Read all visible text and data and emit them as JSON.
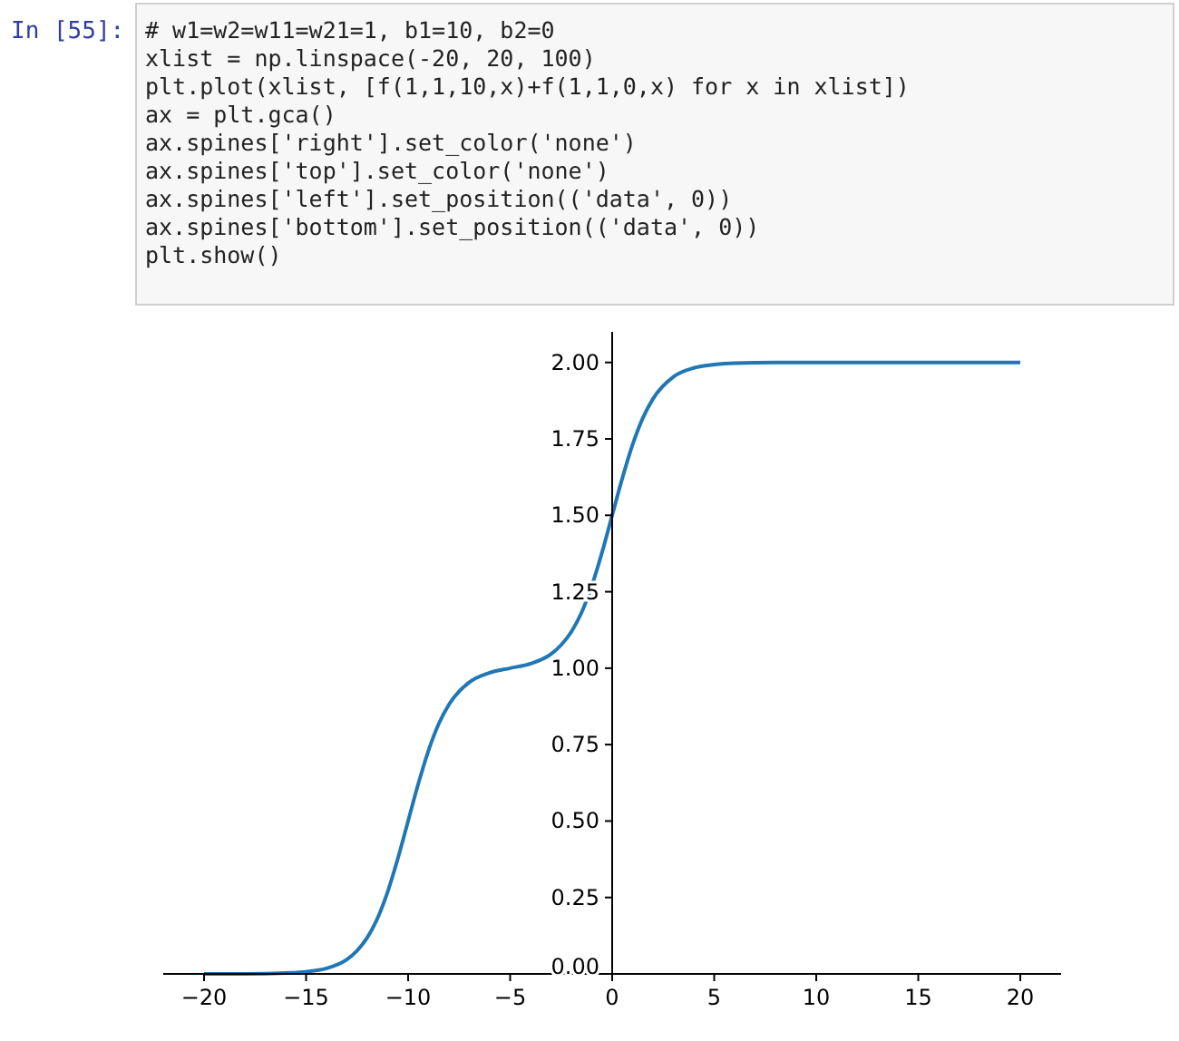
{
  "chart_data": {
    "type": "line",
    "x": [
      -20,
      -18,
      -16,
      -15,
      -14,
      -13,
      -12.5,
      -12,
      -11.5,
      -11,
      -10.5,
      -10,
      -9.5,
      -9,
      -8.5,
      -8,
      -7,
      -6,
      -5,
      -4,
      -3,
      -2.5,
      -2,
      -1.5,
      -1,
      -0.5,
      0,
      0.5,
      1,
      1.5,
      2,
      3,
      4,
      5,
      6,
      8,
      10,
      15,
      20
    ],
    "series": [
      {
        "color": "#1f77b4",
        "values": [
          0.0,
          0.0,
          0.003,
          0.007,
          0.018,
          0.047,
          0.076,
          0.119,
          0.182,
          0.269,
          0.378,
          0.5,
          0.622,
          0.731,
          0.818,
          0.881,
          0.954,
          0.985,
          1.0,
          1.015,
          1.046,
          1.076,
          1.119,
          1.182,
          1.269,
          1.378,
          1.5,
          1.622,
          1.731,
          1.818,
          1.881,
          1.953,
          1.982,
          1.993,
          1.998,
          2.0,
          2.0,
          2.0,
          2.0
        ]
      }
    ],
    "xlim": [
      -22,
      22
    ],
    "xticks": [
      -20,
      -15,
      -10,
      -5,
      0,
      5,
      10,
      15,
      20
    ],
    "ylim": [
      0,
      2.1
    ],
    "yticks": [
      {
        "value": 0,
        "label": "0.00"
      },
      {
        "value": 0.25,
        "label": "0.25"
      },
      {
        "value": 0.5,
        "label": "0.50"
      },
      {
        "value": 0.75,
        "label": "0.75"
      },
      {
        "value": 1,
        "label": "1.00"
      },
      {
        "value": 1.25,
        "label": "1.25"
      },
      {
        "value": 1.5,
        "label": "1.50"
      },
      {
        "value": 1.75,
        "label": "1.75"
      },
      {
        "value": 2,
        "label": "2.00"
      }
    ],
    "grid": false,
    "annotations": [
      "In [55]:",
      "# w1=w2=w11=w21=1, b1=10, b2=0",
      "xlist = np.linspace(-20, 20, 100)",
      "plt.plot(xlist, [f(1,1,10,x)+f(1,1,0,x) for x in xlist])",
      "ax = plt.gca()",
      "ax.spines['right'].set_color('none')",
      "ax.spines['top'].set_color('none')",
      "ax.spines['left'].set_position(('data', 0))",
      "ax.spines['bottom'].set_position(('data', 0))",
      "plt.show()"
    ]
  }
}
